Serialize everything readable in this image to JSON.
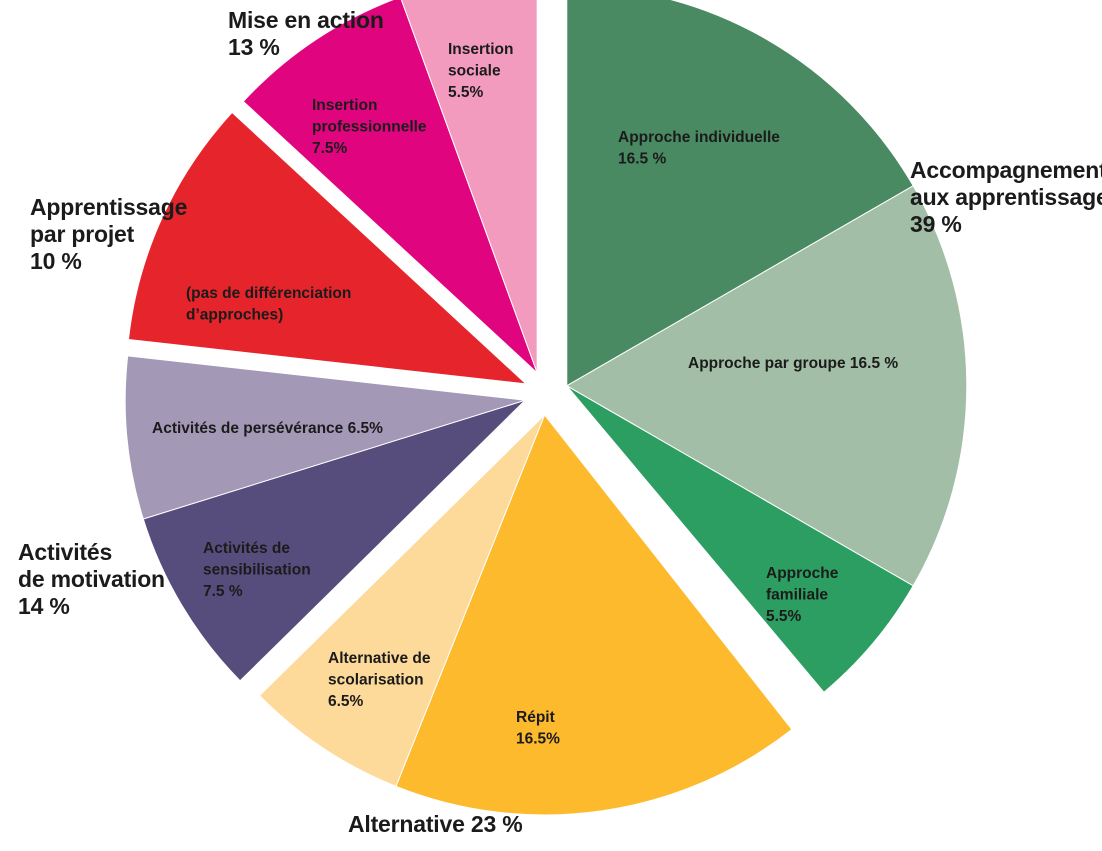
{
  "chart_data": {
    "type": "pie",
    "title": "",
    "groups": [
      {
        "name": "Accompagnement aux apprentissages",
        "label_lines": [
          "Accompagnement",
          "aux apprentissages",
          "39 %"
        ],
        "value": 39,
        "slices": [
          {
            "name": "Approche individuelle",
            "value": 16.5,
            "color": "#4a8a63",
            "label_lines": [
              "Approche individuelle",
              "16.5 %"
            ]
          },
          {
            "name": "Approche par groupe",
            "value": 16.5,
            "color": "#a3bea6",
            "label_lines": [
              "Approche par groupe 16.5 %"
            ]
          },
          {
            "name": "Approche familiale",
            "value": 5.5,
            "color": "#2c9e62",
            "label_lines": [
              "Approche",
              "familiale",
              "5.5%"
            ]
          }
        ]
      },
      {
        "name": "Alternative",
        "label_lines": [
          "Alternative 23 %"
        ],
        "value": 23,
        "slices": [
          {
            "name": "Répit",
            "value": 16.5,
            "color": "#fcba2c",
            "label_lines": [
              "Répit",
              "16.5%"
            ]
          },
          {
            "name": "Alternative de scolarisation",
            "value": 6.5,
            "color": "#fdd99a",
            "label_lines": [
              "Alternative de",
              "scolarisation",
              "6.5%"
            ]
          }
        ]
      },
      {
        "name": "Activités de motivation",
        "label_lines": [
          "Activités",
          "de motivation",
          "14 %"
        ],
        "value": 14,
        "slices": [
          {
            "name": "Activités de sensibilisation",
            "value": 7.5,
            "color": "#574d7d",
            "label_lines": [
              "Activités de",
              "sensibilisation",
              "7.5 %"
            ]
          },
          {
            "name": "Activités de persévérance",
            "value": 6.5,
            "color": "#a498b7",
            "label_lines": [
              "Activités de persévérance 6.5%"
            ]
          }
        ]
      },
      {
        "name": "Apprentissage par projet",
        "label_lines": [
          "Apprentissage",
          "par projet",
          "10 %"
        ],
        "value": 10,
        "slices": [
          {
            "name": "(pas de différenciation d’approches)",
            "value": 10,
            "color": "#e6242b",
            "label_lines": [
              "(pas de différenciation",
              "d’approches)"
            ]
          }
        ]
      },
      {
        "name": "Mise en action",
        "label_lines": [
          "Mise en action",
          "13 %"
        ],
        "value": 13,
        "slices": [
          {
            "name": "Insertion professionnelle",
            "value": 7.5,
            "color": "#e0057e",
            "label_lines": [
              "Insertion",
              "professionnelle",
              "7.5%"
            ]
          },
          {
            "name": "Insertion sociale",
            "value": 5.5,
            "color": "#f29bbf",
            "label_lines": [
              "Insertion",
              "sociale",
              "5.5%"
            ]
          }
        ]
      }
    ]
  }
}
